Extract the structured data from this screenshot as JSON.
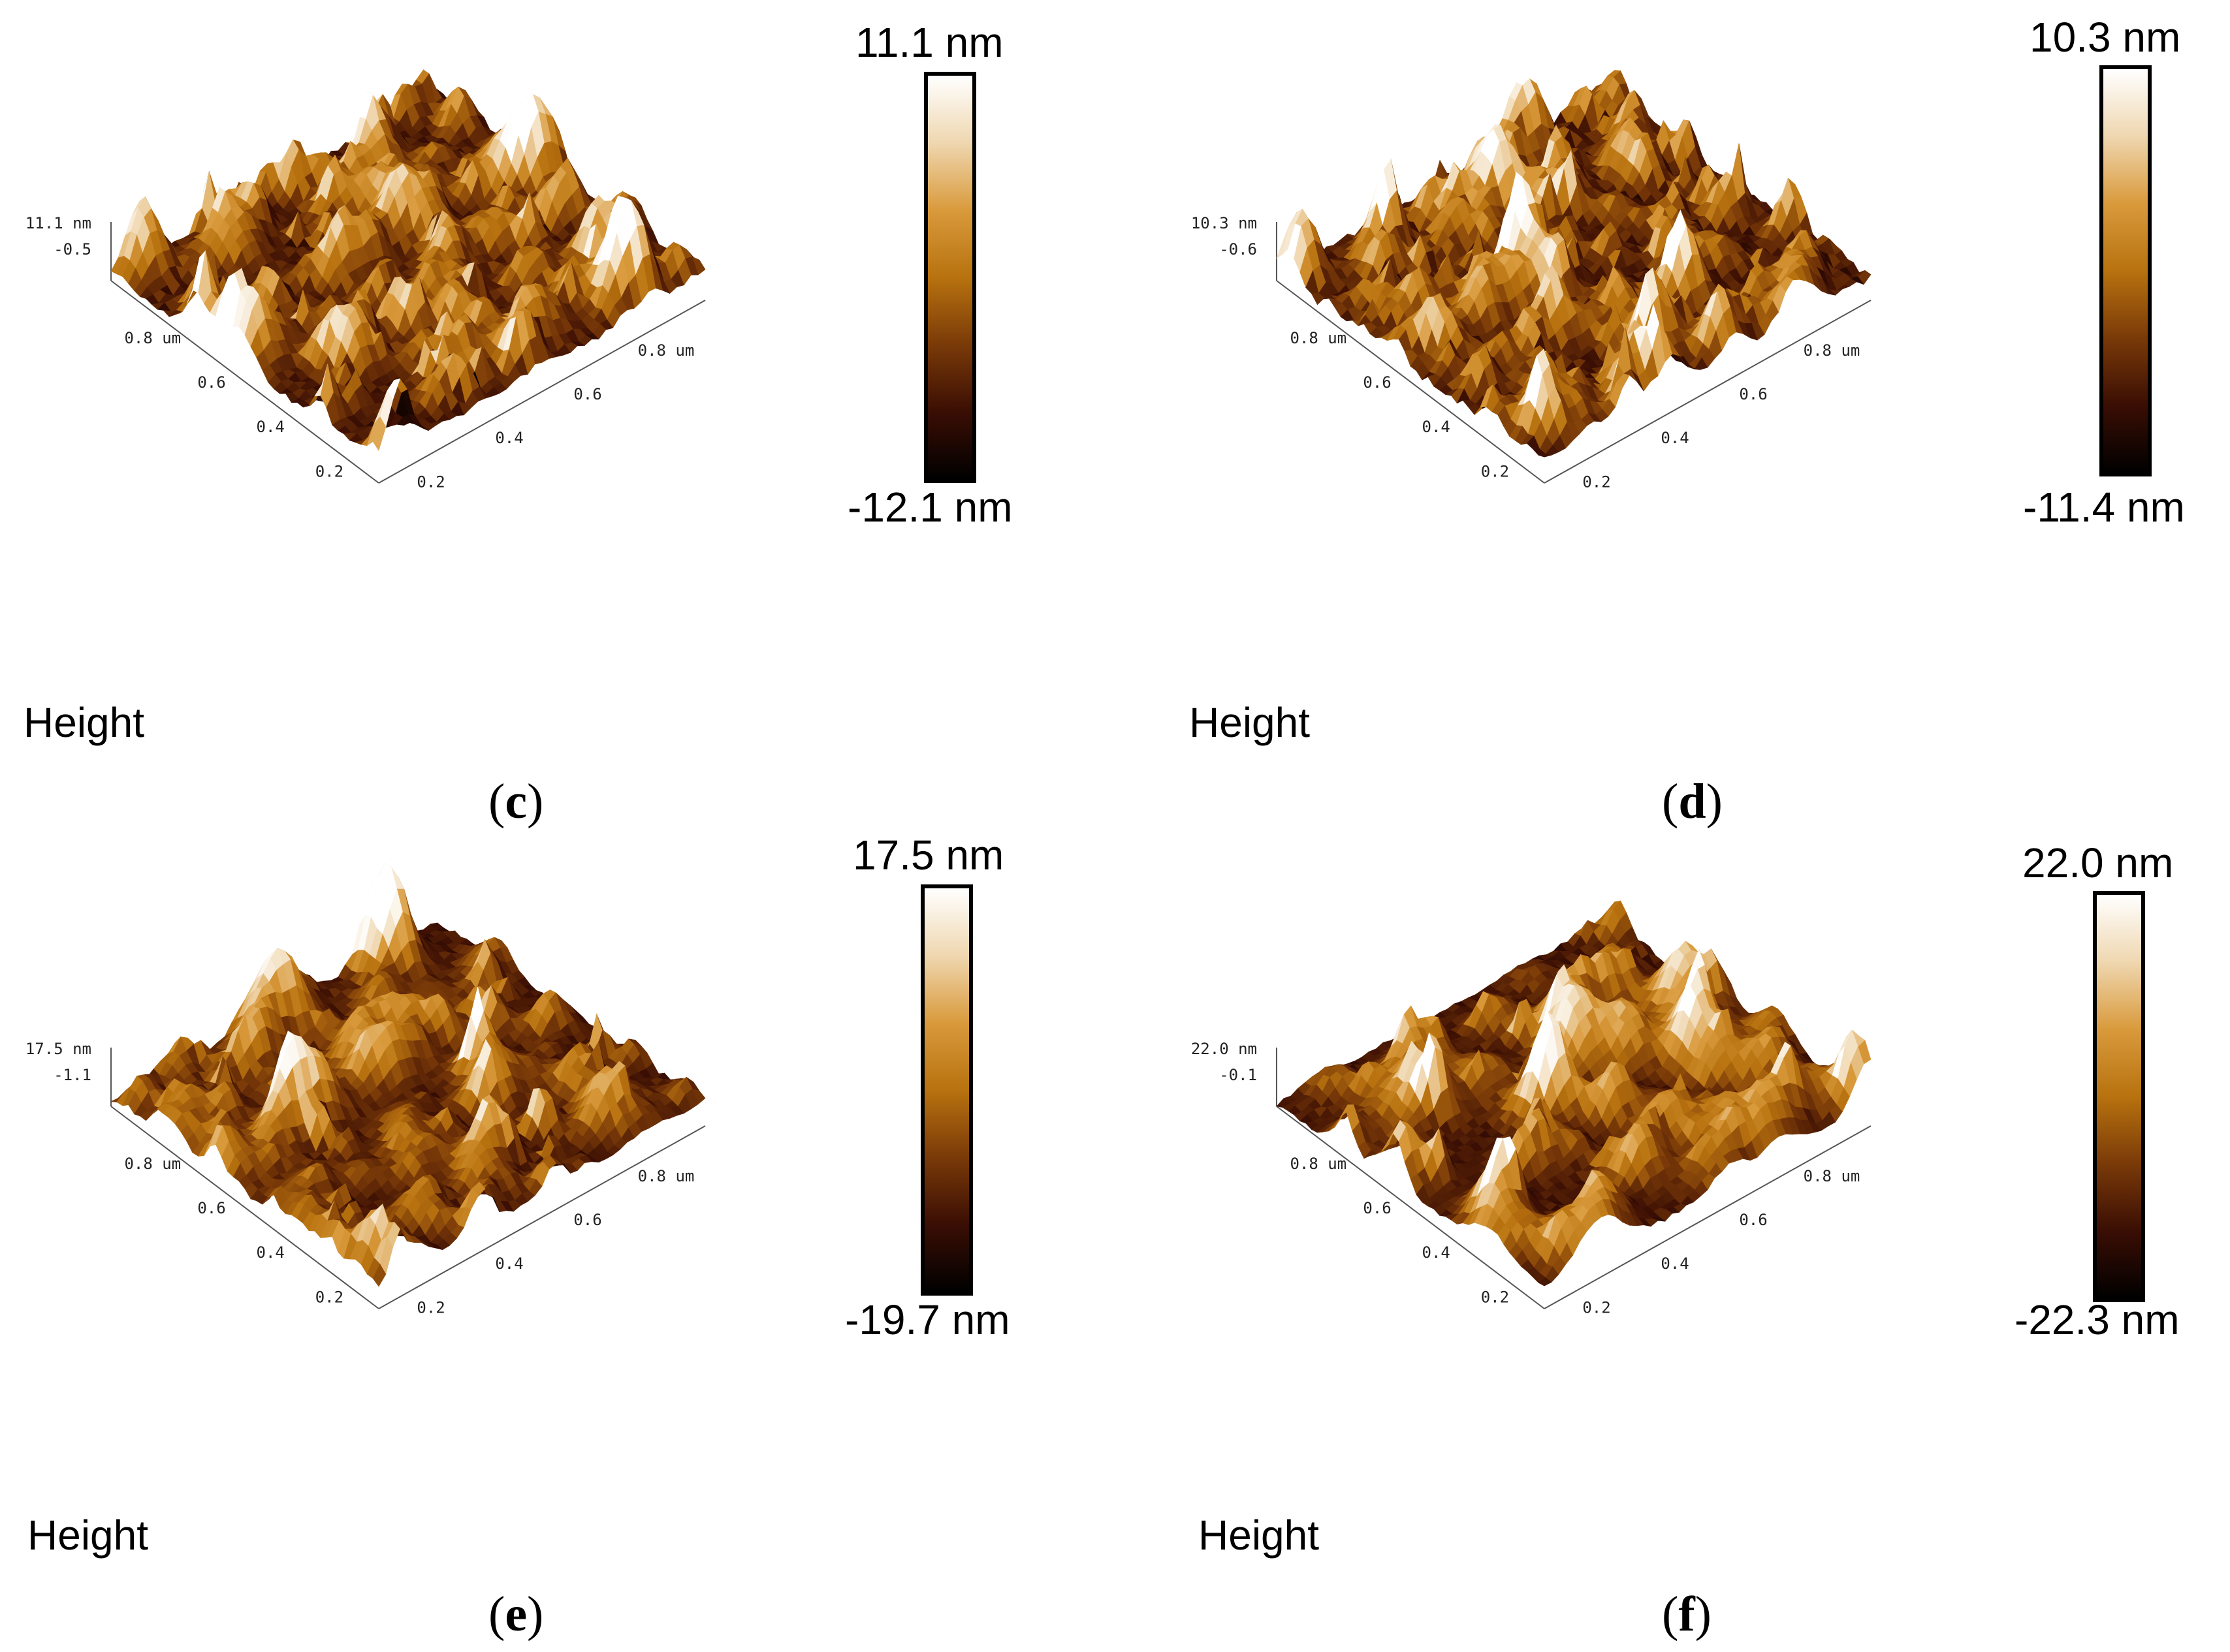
{
  "colors": {
    "gradient": [
      "#000000",
      "#3a0e04",
      "#7a3a08",
      "#b8720f",
      "#d99a3c",
      "#efd7b0",
      "#ffffff"
    ]
  },
  "panels": [
    {
      "id": "c",
      "label": "c",
      "z_max": "11.1 nm",
      "z_min": "-12.1 nm",
      "z_axis_top": "11.1",
      "z_axis_unit": "nm",
      "z_axis_mid": "-0.5",
      "y_ticks": [
        "0.8 um",
        "0.6",
        "0.4",
        "0.2"
      ],
      "x_ticks": [
        "0.2",
        "0.4",
        "0.6",
        "0.8 um"
      ],
      "channel": "Height",
      "roughness": 0.5,
      "seed": 11
    },
    {
      "id": "d",
      "label": "d",
      "z_max": "10.3 nm",
      "z_min": "-11.4 nm",
      "z_axis_top": "10.3",
      "z_axis_unit": "nm",
      "z_axis_mid": "-0.6",
      "y_ticks": [
        "0.8 um",
        "0.6",
        "0.4",
        "0.2"
      ],
      "x_ticks": [
        "0.2",
        "0.4",
        "0.6",
        "0.8 um"
      ],
      "channel": "Height",
      "roughness": 0.45,
      "seed": 23
    },
    {
      "id": "e",
      "label": "e",
      "z_max": "17.5 nm",
      "z_min": "-19.7 nm",
      "z_axis_top": "17.5",
      "z_axis_unit": "nm",
      "z_axis_mid": "-1.1",
      "y_ticks": [
        "0.8 um",
        "0.6",
        "0.4",
        "0.2"
      ],
      "x_ticks": [
        "0.2",
        "0.4",
        "0.6",
        "0.8 um"
      ],
      "channel": "Height",
      "roughness": 0.6,
      "seed": 37
    },
    {
      "id": "f",
      "label": "f",
      "z_max": "22.0 nm",
      "z_min": "-22.3 nm",
      "z_axis_top": "22.0",
      "z_axis_unit": "nm",
      "z_axis_mid": "-0.1",
      "y_ticks": [
        "0.8 um",
        "0.6",
        "0.4",
        "0.2"
      ],
      "x_ticks": [
        "0.2",
        "0.4",
        "0.6",
        "0.8 um"
      ],
      "channel": "Height",
      "roughness": 0.9,
      "seed": 53
    }
  ]
}
